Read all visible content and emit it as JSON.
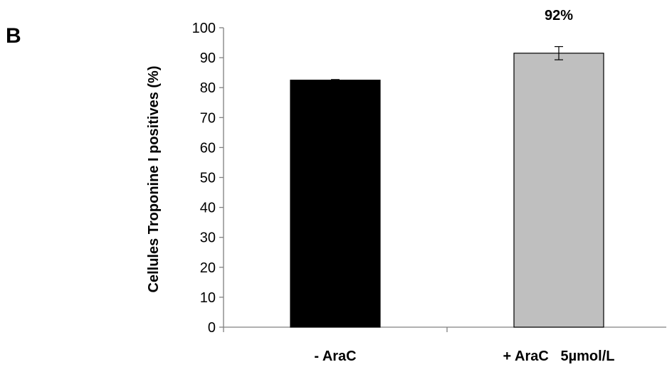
{
  "panel_label": "B",
  "chart_data": {
    "type": "bar",
    "title": "",
    "ylabel": "Cellules Troponine I positives (%)",
    "xlabel": "",
    "ylim": [
      0,
      100
    ],
    "yticks": [
      0,
      10,
      20,
      30,
      40,
      50,
      60,
      70,
      80,
      90,
      100
    ],
    "ytick_labels": [
      "0",
      "10",
      "20",
      "30",
      "40",
      "50",
      "60",
      "70",
      "80",
      "90",
      "100"
    ],
    "categories": [
      "- AraC",
      "+ AraC   5µmol/L"
    ],
    "values": [
      82.5,
      91.5
    ],
    "errors": [
      0.2,
      2.2
    ],
    "bar_colors": [
      "#000000",
      "#bfbfbf"
    ],
    "data_labels": [
      "",
      "92%"
    ],
    "grid": false,
    "legend": "none"
  }
}
